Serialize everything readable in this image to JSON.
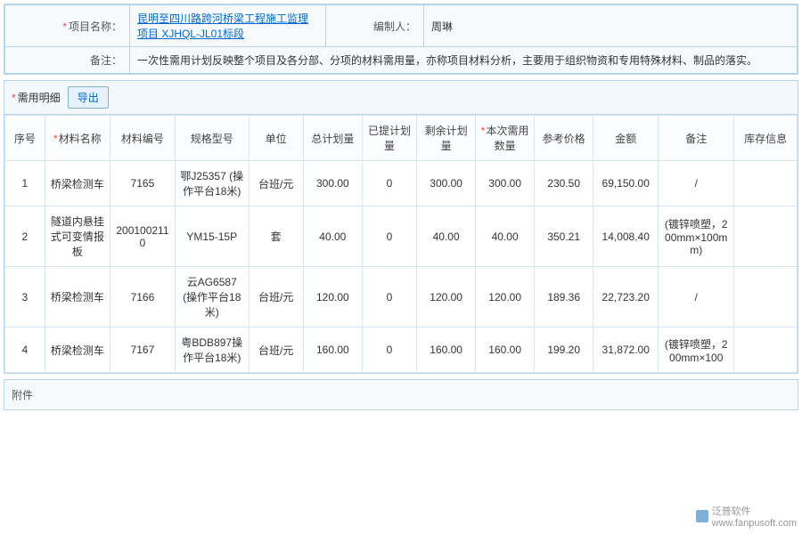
{
  "header": {
    "projectLabel": "项目名称：",
    "projectName": "昆明至四川路跨河桥梁工程施工监理项目 XJHQL-JL01标段",
    "editorLabel": "编制人：",
    "editorName": "周琳",
    "remarkLabel": "备注：",
    "remarkText": "一次性需用计划反映整个项目及各分部、分项的材料需用量，亦称项目材料分析，主要用于组织物资和专用特殊材料、制品的落实。"
  },
  "detail": {
    "title": "需用明细",
    "exportLabel": "导出",
    "columns": [
      "序号",
      "材料名称",
      "材料编号",
      "规格型号",
      "单位",
      "总计划量",
      "已提计划量",
      "剩余计划量",
      "本次需用数量",
      "参考价格",
      "金额",
      "备注",
      "库存信息"
    ],
    "reqCols": [
      1,
      8
    ],
    "widths": [
      38,
      62,
      62,
      70,
      52,
      56,
      52,
      56,
      56,
      56,
      62,
      72,
      60
    ],
    "rows": [
      [
        "1",
        "桥梁检测车",
        "7165",
        "鄂J25357 (操作平台18米)",
        "台班/元",
        "300.00",
        "0",
        "300.00",
        "300.00",
        "230.50",
        "69,150.00",
        "/",
        ""
      ],
      [
        "2",
        "隧道内悬挂式可变情报板",
        "2001002110",
        "YM15-15P",
        "套",
        "40.00",
        "0",
        "40.00",
        "40.00",
        "350.21",
        "14,008.40",
        "(镀锌喷塑，200mm×100mm)",
        ""
      ],
      [
        "3",
        "桥梁检测车",
        "7166",
        "云AG6587 (操作平台18米)",
        "台班/元",
        "120.00",
        "0",
        "120.00",
        "120.00",
        "189.36",
        "22,723.20",
        "/",
        ""
      ],
      [
        "4",
        "桥梁检测车",
        "7167",
        "粤BDB897操作平台18米)",
        "台班/元",
        "160.00",
        "0",
        "160.00",
        "160.00",
        "199.20",
        "31,872.00",
        "(镀锌喷塑，200mm×100",
        ""
      ]
    ]
  },
  "attachments": {
    "label": "附件"
  },
  "watermark": {
    "brand": "泛普软件",
    "site": "www.fanpusoft.com"
  },
  "colors": {
    "border": "#b8d4e8",
    "panelBg": "#f6fafd",
    "link": "#0066cc",
    "req": "#e74c3c",
    "gridBorder": "#d9e6f2",
    "btnBg": "#e6f1fb"
  }
}
